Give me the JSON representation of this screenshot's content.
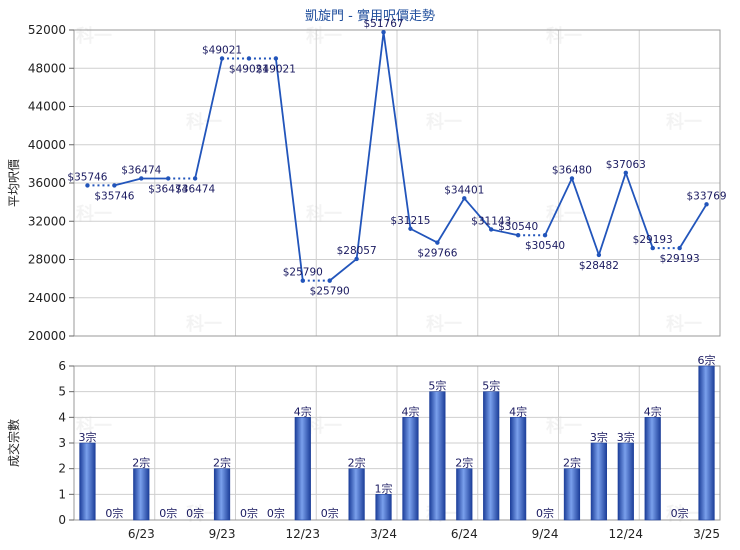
{
  "title": "凱旋門 - 實用呎價走勢",
  "colors": {
    "line": "#2255bb",
    "bar": "#2f5fc4",
    "grid": "#cfcfcf",
    "title": "#1f4e9c"
  },
  "chart_data": [
    {
      "type": "line",
      "ylabel": "平均呎價",
      "ylim": [
        20000,
        52000
      ],
      "yticks": [
        "20000",
        "24000",
        "28000",
        "32000",
        "36000",
        "40000",
        "44000",
        "48000",
        "52000"
      ],
      "grid": true,
      "points": [
        {
          "i": 0,
          "value": 35746,
          "label": "$35746"
        },
        {
          "i": 1,
          "value": 35746,
          "label": "$35746"
        },
        {
          "i": 2,
          "value": 36474,
          "label": "$36474"
        },
        {
          "i": 3,
          "value": 36474,
          "label": "$36474"
        },
        {
          "i": 4,
          "value": 36474,
          "label": "$36474"
        },
        {
          "i": 5,
          "value": 49021,
          "label": "$49021"
        },
        {
          "i": 6,
          "value": 49021,
          "label": "$49021"
        },
        {
          "i": 7,
          "value": 49021,
          "label": "$49021"
        },
        {
          "i": 8,
          "value": 25790,
          "label": "$25790"
        },
        {
          "i": 9,
          "value": 25790,
          "label": "$25790"
        },
        {
          "i": 10,
          "value": 28057,
          "label": "$28057"
        },
        {
          "i": 11,
          "value": 51767,
          "label": "$51767"
        },
        {
          "i": 12,
          "value": 31215,
          "label": "$31215"
        },
        {
          "i": 13,
          "value": 29766,
          "label": "$29766"
        },
        {
          "i": 14,
          "value": 34401,
          "label": "$34401"
        },
        {
          "i": 15,
          "value": 31143,
          "label": "$31143"
        },
        {
          "i": 16,
          "value": 30540,
          "label": "$30540"
        },
        {
          "i": 17,
          "value": 30540,
          "label": "$30540"
        },
        {
          "i": 18,
          "value": 36480,
          "label": "$36480"
        },
        {
          "i": 19,
          "value": 28482,
          "label": "$28482"
        },
        {
          "i": 20,
          "value": 37063,
          "label": "$37063"
        },
        {
          "i": 21,
          "value": 29193,
          "label": "$29193"
        },
        {
          "i": 22,
          "value": 29193,
          "label": "$29193"
        },
        {
          "i": 23,
          "value": 33769,
          "label": "$33769"
        }
      ],
      "dotted_segments": [
        [
          0,
          1
        ],
        [
          3,
          4
        ],
        [
          5,
          6
        ],
        [
          6,
          7
        ],
        [
          8,
          9
        ],
        [
          16,
          17
        ],
        [
          21,
          22
        ]
      ]
    },
    {
      "type": "bar",
      "ylabel": "成交宗數",
      "ylim": [
        0,
        6
      ],
      "yticks": [
        "0",
        "1",
        "2",
        "3",
        "4",
        "5",
        "6"
      ],
      "grid": true,
      "values": [
        3,
        0,
        2,
        0,
        0,
        2,
        0,
        0,
        4,
        0,
        2,
        1,
        4,
        5,
        2,
        5,
        4,
        0,
        2,
        3,
        3,
        4,
        0,
        6
      ],
      "labels": [
        "3宗",
        "0宗",
        "2宗",
        "0宗",
        "0宗",
        "2宗",
        "0宗",
        "0宗",
        "4宗",
        "0宗",
        "2宗",
        "1宗",
        "4宗",
        "5宗",
        "2宗",
        "5宗",
        "4宗",
        "0宗",
        "2宗",
        "3宗",
        "3宗",
        "4宗",
        "0宗",
        "6宗"
      ],
      "x_ticks": [
        {
          "i": 2,
          "label": "6/23"
        },
        {
          "i": 5,
          "label": "9/23"
        },
        {
          "i": 8,
          "label": "12/23"
        },
        {
          "i": 11,
          "label": "3/24"
        },
        {
          "i": 14,
          "label": "6/24"
        },
        {
          "i": 17,
          "label": "9/24"
        },
        {
          "i": 20,
          "label": "12/24"
        },
        {
          "i": 23,
          "label": "3/25"
        }
      ]
    }
  ],
  "watermark": "科一"
}
